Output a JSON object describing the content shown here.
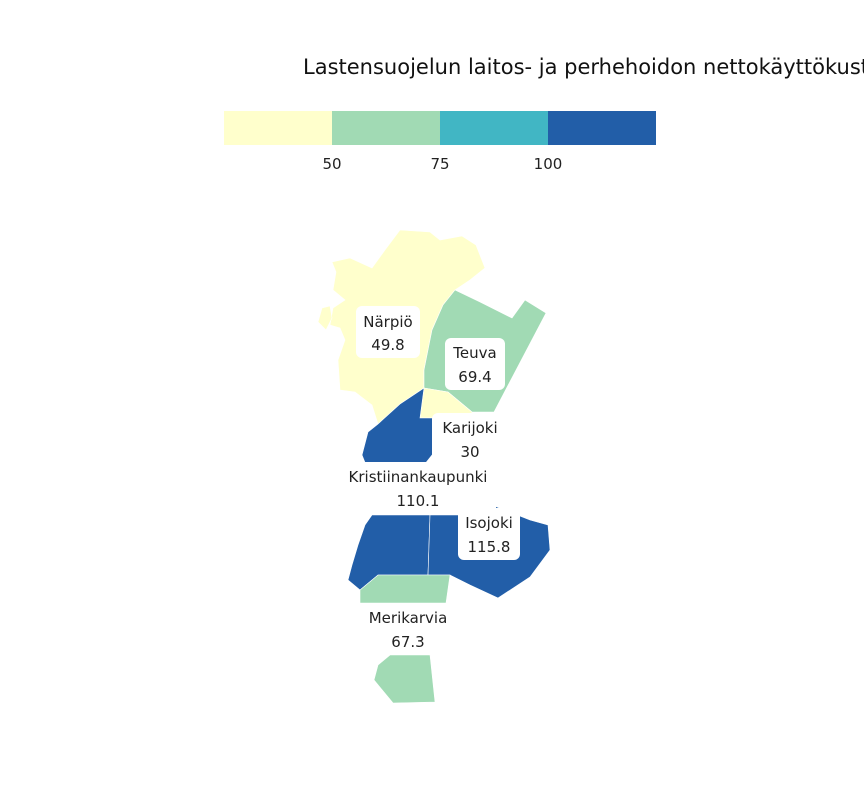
{
  "title": "Lastensuojelun laitos- ja perhehoidon nettokäyttökust",
  "legend": {
    "colors": [
      "#ffffcc",
      "#a1dab4",
      "#41b6c4",
      "#225ea8"
    ],
    "ticks": [
      "50",
      "75",
      "100"
    ]
  },
  "regions": [
    {
      "name": "Närpiö",
      "value": "49.8",
      "color": "#ffffcc"
    },
    {
      "name": "Teuva",
      "value": "69.4",
      "color": "#a1dab4"
    },
    {
      "name": "Karijoki",
      "value": "30",
      "color": "#ffffcc"
    },
    {
      "name": "Kristiinankaupunki",
      "value": "110.1",
      "color": "#225ea8"
    },
    {
      "name": "Isojoki",
      "value": "115.8",
      "color": "#225ea8"
    },
    {
      "name": "Merikarvia",
      "value": "67.3",
      "color": "#a1dab4"
    }
  ]
}
